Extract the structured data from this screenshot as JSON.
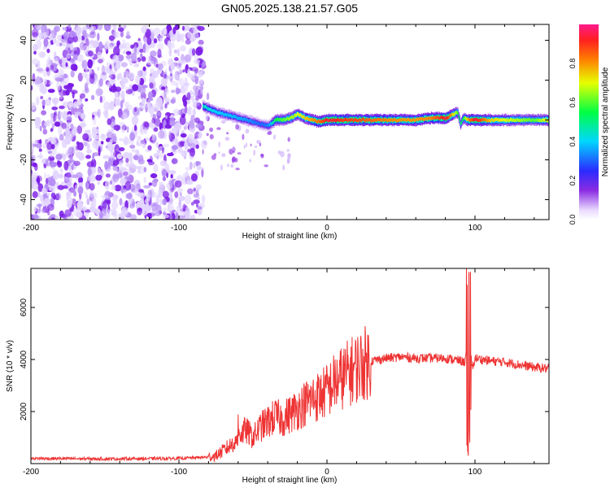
{
  "title": "GN05.2025.138.21.57.G05",
  "colors": {
    "snr_line": "#ee3333",
    "scatter_purple": "#7a1be6",
    "axis": "#000000"
  },
  "chart_data": [
    {
      "type": "heatmap",
      "ylabel": "Frequency (Hz)",
      "xlabel": "Height of straight line (km)",
      "xlim": [
        -200,
        150
      ],
      "ylim": [
        -50,
        48
      ],
      "xticks": [
        "-200",
        "-100",
        "0",
        "100"
      ],
      "yticks": [
        "40",
        "20",
        "0",
        "-20",
        "-40"
      ],
      "colorbar": {
        "label": "Normalized spectral amplitude",
        "range": [
          0,
          1
        ],
        "ticks": [
          "0.0",
          "0.2",
          "0.4",
          "0.6",
          "0.8"
        ]
      },
      "ridge": {
        "x": [
          -84,
          -75,
          -65,
          -55,
          -45,
          -40,
          -35,
          -30,
          -25,
          -20,
          -15,
          -10,
          -5,
          0,
          10,
          20,
          30,
          40,
          50,
          60,
          70,
          80,
          88,
          90,
          92,
          95,
          100,
          110,
          120,
          130,
          140,
          150
        ],
        "y": [
          7,
          4,
          2,
          0,
          -2,
          -3,
          0,
          0,
          1,
          3,
          1,
          0,
          -1,
          0,
          0,
          0,
          0,
          0,
          0,
          0,
          1,
          1,
          4,
          -2,
          1,
          0,
          0,
          0,
          0,
          0,
          0,
          0
        ],
        "amplitude": [
          0.45,
          0.4,
          0.38,
          0.35,
          0.3,
          0.33,
          0.55,
          0.6,
          0.65,
          0.7,
          0.75,
          0.8,
          0.85,
          0.95,
          0.9,
          0.88,
          0.85,
          0.82,
          0.8,
          0.8,
          0.82,
          0.95,
          0.6,
          0.5,
          0.55,
          0.8,
          0.95,
          0.75,
          0.7,
          0.65,
          0.6,
          0.75
        ]
      }
    },
    {
      "type": "line",
      "ylabel": "SNR (10 * v/v)",
      "xlabel": "Height of straight line (km)",
      "xlim": [
        -200,
        150
      ],
      "ylim": [
        0,
        7500
      ],
      "xticks": [
        "-200",
        "-100",
        "0",
        "100"
      ],
      "yticks": [
        "6000",
        "4000",
        "2000"
      ],
      "series": [
        {
          "x": [
            -200,
            -150,
            -100,
            -80,
            -75,
            -70,
            -65,
            -60,
            -55,
            -50,
            -45,
            -40,
            -35,
            -30,
            -25,
            -20,
            -15,
            -10,
            -5,
            0,
            5,
            10,
            15,
            20,
            25,
            30,
            40,
            50,
            60,
            70,
            80,
            85,
            90,
            93,
            95,
            96,
            97,
            98,
            100,
            110,
            120,
            130,
            140,
            150
          ],
          "y": [
            200,
            180,
            200,
            250,
            300,
            500,
            700,
            1000,
            1300,
            1000,
            1400,
            1600,
            1800,
            1700,
            1900,
            2100,
            2300,
            2500,
            2600,
            2800,
            3100,
            3300,
            3500,
            3700,
            3850,
            3950,
            4050,
            4100,
            4050,
            4050,
            4050,
            4000,
            3950,
            3900,
            4500,
            2800,
            4800,
            3600,
            4050,
            3950,
            3900,
            3800,
            3700,
            3650
          ]
        }
      ]
    }
  ]
}
